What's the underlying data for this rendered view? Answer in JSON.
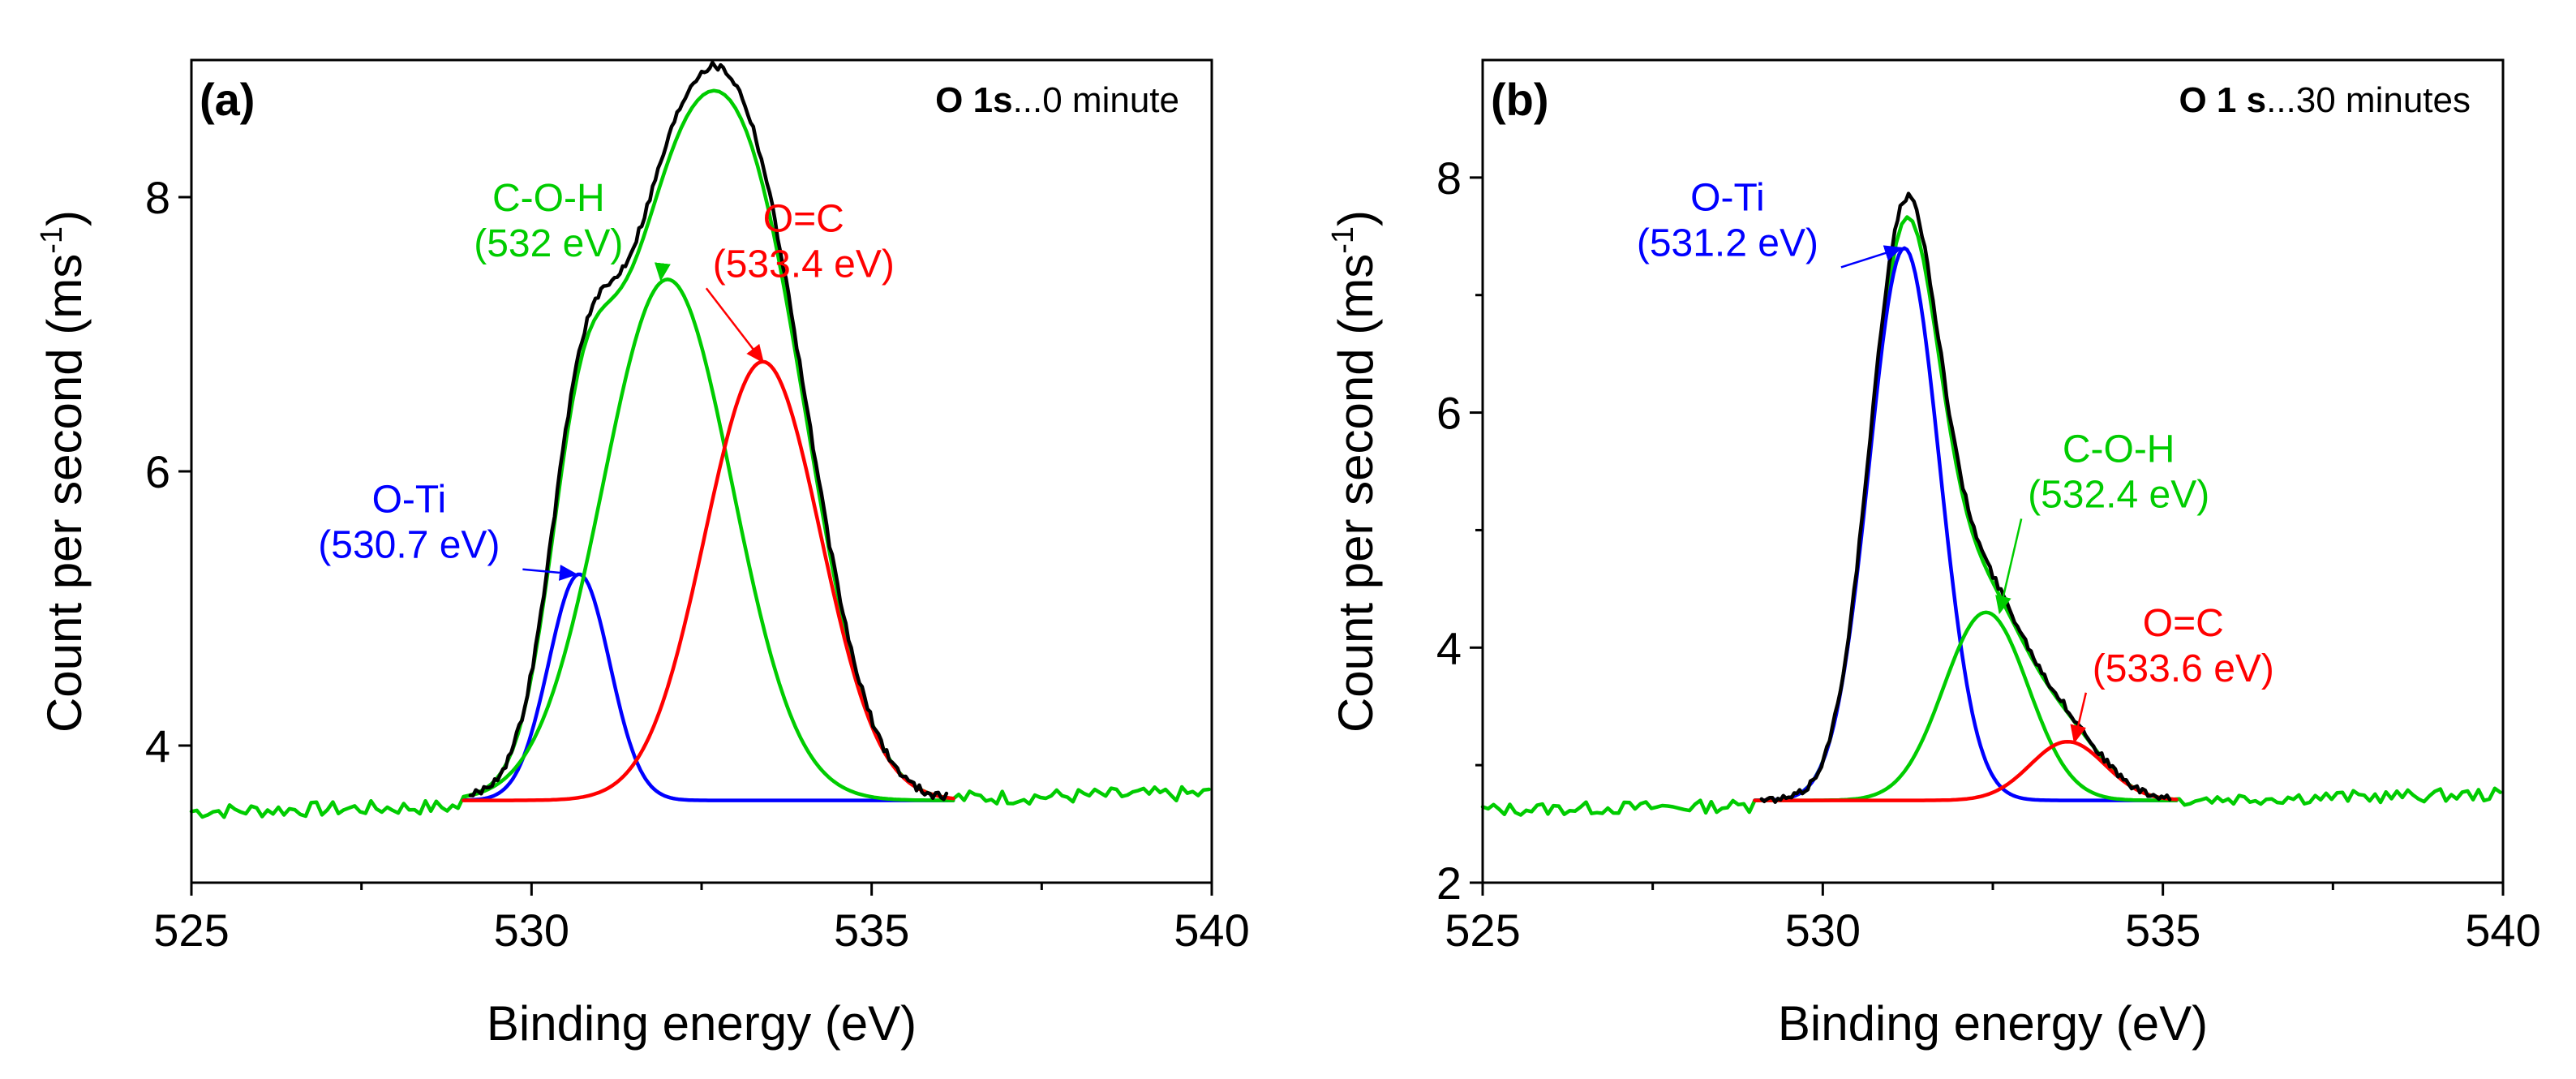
{
  "chart_data": [
    {
      "type": "line",
      "panel_label": "(a)",
      "title_bold": "O 1s",
      "title_rest": "...0 minute",
      "xlabel": "Binding energy (eV)",
      "ylabel_main": "Count per second (ms",
      "ylabel_sup": "-1",
      "ylabel_close": ")",
      "xlim": [
        525,
        540
      ],
      "ylim": [
        3.0,
        9.0
      ],
      "xticks": [
        525,
        530,
        535,
        540
      ],
      "xtick_labels": [
        "525",
        "530",
        "535",
        "540"
      ],
      "yticks": [
        4,
        6,
        8
      ],
      "ytick_labels": [
        "4",
        "6",
        "8"
      ],
      "background": 3.6,
      "noise_seed": 7,
      "fit_range": [
        529.0,
        536.2
      ],
      "peaks": [
        {
          "name": "O-Ti",
          "label_top": "O-Ti",
          "label_bottom": "(530.7 eV)",
          "center": 530.7,
          "height": 5.25,
          "sigma": 0.45,
          "color": "#0000ff",
          "label_pos": [
            528.2,
            5.7
          ],
          "arrow_to": [
            530.65,
            5.25
          ]
        },
        {
          "name": "C-O-H",
          "label_top": "C-O-H",
          "label_bottom": "(532 eV)",
          "center": 532.0,
          "height": 7.4,
          "sigma": 0.95,
          "color": "#00cc00",
          "label_pos": [
            530.25,
            7.9
          ],
          "arrow_to": [
            531.9,
            7.4
          ]
        },
        {
          "name": "O=C",
          "label_top": "O=C",
          "label_bottom": "(533.4 eV)",
          "center": 533.4,
          "height": 6.8,
          "sigma": 0.85,
          "color": "#ff0000",
          "label_pos": [
            534.0,
            7.75
          ],
          "arrow_to": [
            533.4,
            6.8
          ]
        }
      ],
      "envelope_color": "#000000",
      "baseline_color": "#00cc00"
    },
    {
      "type": "line",
      "panel_label": "(b)",
      "title_bold": "O 1 s",
      "title_rest": "...30 minutes",
      "xlabel": "Binding energy (eV)",
      "ylabel_main": "Count per second (ms",
      "ylabel_sup": "-1",
      "ylabel_close": ")",
      "xlim": [
        525,
        540
      ],
      "ylim": [
        2.0,
        9.0
      ],
      "xticks": [
        525,
        530,
        535,
        540
      ],
      "xtick_labels": [
        "525",
        "530",
        "535",
        "540"
      ],
      "yticks": [
        2,
        4,
        6,
        8
      ],
      "ytick_labels": [
        "2",
        "4",
        "6",
        "8"
      ],
      "background": 2.7,
      "noise_seed": 13,
      "fit_range": [
        529.0,
        535.2
      ],
      "peaks": [
        {
          "name": "O-Ti",
          "label_top": "O-Ti",
          "label_bottom": "(531.2 eV)",
          "center": 531.2,
          "height": 7.4,
          "sigma": 0.52,
          "color": "#0000ff",
          "label_pos": [
            528.6,
            7.72
          ],
          "arrow_to": [
            531.15,
            7.4
          ]
        },
        {
          "name": "C-O-H",
          "label_top": "C-O-H",
          "label_bottom": "(532.4 eV)",
          "center": 532.4,
          "height": 4.3,
          "sigma": 0.62,
          "color": "#00cc00",
          "label_pos": [
            534.35,
            5.58
          ],
          "arrow_to": [
            532.6,
            4.3
          ]
        },
        {
          "name": "O=C",
          "label_top": "O=C",
          "label_bottom": "(533.6 eV)",
          "center": 533.6,
          "height": 3.2,
          "sigma": 0.55,
          "color": "#ff0000",
          "label_pos": [
            535.3,
            4.1
          ],
          "arrow_to": [
            533.7,
            3.2
          ]
        }
      ],
      "envelope_color": "#000000",
      "baseline_color": "#00cc00"
    }
  ]
}
